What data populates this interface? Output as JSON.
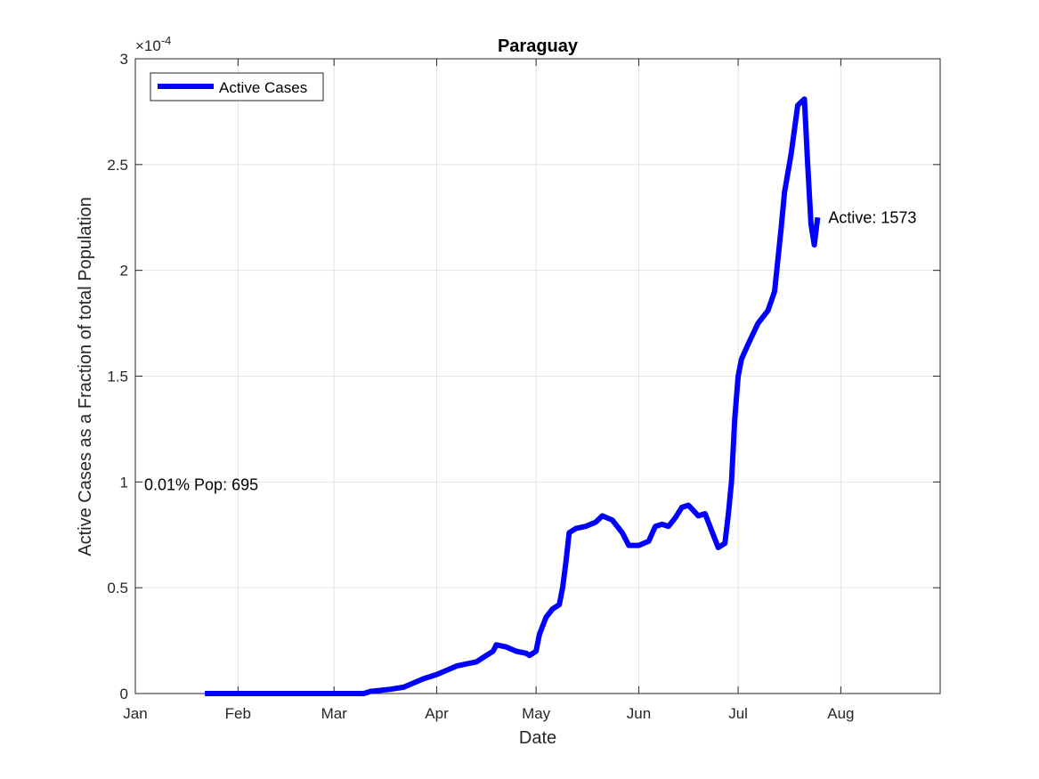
{
  "chart_data": {
    "type": "line",
    "title": "Paraguay",
    "xlabel": "Date",
    "ylabel": "Active Cases as a Fraction of total Population",
    "y_exponent_label": "×10",
    "y_exponent_value": "-4",
    "y_multiplier": 0.0001,
    "xlim": [
      "2020-01-01",
      "2020-08-31"
    ],
    "ylim": [
      0,
      3
    ],
    "x_ticks": [
      {
        "date": "2020-01-01",
        "label": "Jan"
      },
      {
        "date": "2020-02-01",
        "label": "Feb"
      },
      {
        "date": "2020-03-01",
        "label": "Mar"
      },
      {
        "date": "2020-04-01",
        "label": "Apr"
      },
      {
        "date": "2020-05-01",
        "label": "May"
      },
      {
        "date": "2020-06-01",
        "label": "Jun"
      },
      {
        "date": "2020-07-01",
        "label": "Jul"
      },
      {
        "date": "2020-08-01",
        "label": "Aug"
      }
    ],
    "y_ticks": [
      {
        "value": 0,
        "label": "0"
      },
      {
        "value": 0.5,
        "label": "0.5"
      },
      {
        "value": 1,
        "label": "1"
      },
      {
        "value": 1.5,
        "label": "1.5"
      },
      {
        "value": 2,
        "label": "2"
      },
      {
        "value": 2.5,
        "label": "2.5"
      },
      {
        "value": 3,
        "label": "3"
      }
    ],
    "grid": true,
    "legend_position": "top-left",
    "line_color": "#0000ff",
    "series": [
      {
        "name": "Active Cases",
        "points": [
          [
            "2020-01-22",
            0
          ],
          [
            "2020-02-15",
            0
          ],
          [
            "2020-03-01",
            0
          ],
          [
            "2020-03-10",
            0
          ],
          [
            "2020-03-12",
            0.01
          ],
          [
            "2020-03-18",
            0.02
          ],
          [
            "2020-03-22",
            0.03
          ],
          [
            "2020-03-25",
            0.05
          ],
          [
            "2020-03-28",
            0.07
          ],
          [
            "2020-04-01",
            0.09
          ],
          [
            "2020-04-04",
            0.11
          ],
          [
            "2020-04-07",
            0.13
          ],
          [
            "2020-04-10",
            0.14
          ],
          [
            "2020-04-13",
            0.15
          ],
          [
            "2020-04-16",
            0.18
          ],
          [
            "2020-04-18",
            0.2
          ],
          [
            "2020-04-19",
            0.23
          ],
          [
            "2020-04-22",
            0.22
          ],
          [
            "2020-04-25",
            0.2
          ],
          [
            "2020-04-28",
            0.19
          ],
          [
            "2020-04-29",
            0.18
          ],
          [
            "2020-05-01",
            0.2
          ],
          [
            "2020-05-02",
            0.28
          ],
          [
            "2020-05-04",
            0.36
          ],
          [
            "2020-05-06",
            0.4
          ],
          [
            "2020-05-08",
            0.42
          ],
          [
            "2020-05-09",
            0.5
          ],
          [
            "2020-05-10",
            0.62
          ],
          [
            "2020-05-11",
            0.76
          ],
          [
            "2020-05-13",
            0.78
          ],
          [
            "2020-05-16",
            0.79
          ],
          [
            "2020-05-19",
            0.81
          ],
          [
            "2020-05-21",
            0.84
          ],
          [
            "2020-05-24",
            0.82
          ],
          [
            "2020-05-27",
            0.76
          ],
          [
            "2020-05-29",
            0.7
          ],
          [
            "2020-06-01",
            0.7
          ],
          [
            "2020-06-04",
            0.72
          ],
          [
            "2020-06-06",
            0.79
          ],
          [
            "2020-06-08",
            0.8
          ],
          [
            "2020-06-10",
            0.79
          ],
          [
            "2020-06-12",
            0.83
          ],
          [
            "2020-06-14",
            0.88
          ],
          [
            "2020-06-16",
            0.89
          ],
          [
            "2020-06-19",
            0.84
          ],
          [
            "2020-06-21",
            0.85
          ],
          [
            "2020-06-23",
            0.77
          ],
          [
            "2020-06-25",
            0.69
          ],
          [
            "2020-06-27",
            0.71
          ],
          [
            "2020-06-28",
            0.84
          ],
          [
            "2020-06-29",
            1.0
          ],
          [
            "2020-06-30",
            1.3
          ],
          [
            "2020-07-01",
            1.5
          ],
          [
            "2020-07-02",
            1.58
          ],
          [
            "2020-07-04",
            1.65
          ],
          [
            "2020-07-07",
            1.75
          ],
          [
            "2020-07-10",
            1.81
          ],
          [
            "2020-07-12",
            1.9
          ],
          [
            "2020-07-14",
            2.2
          ],
          [
            "2020-07-15",
            2.37
          ],
          [
            "2020-07-17",
            2.55
          ],
          [
            "2020-07-19",
            2.78
          ],
          [
            "2020-07-21",
            2.81
          ],
          [
            "2020-07-22",
            2.5
          ],
          [
            "2020-07-23",
            2.22
          ],
          [
            "2020-07-24",
            2.12
          ],
          [
            "2020-07-25",
            2.25
          ]
        ]
      }
    ],
    "annotations": [
      {
        "text": "Active: 1573",
        "date": "2020-07-25",
        "value": 2.25
      },
      {
        "text": "0.01% Pop: 695",
        "date": "2020-01-01",
        "value": 1.0
      }
    ]
  }
}
